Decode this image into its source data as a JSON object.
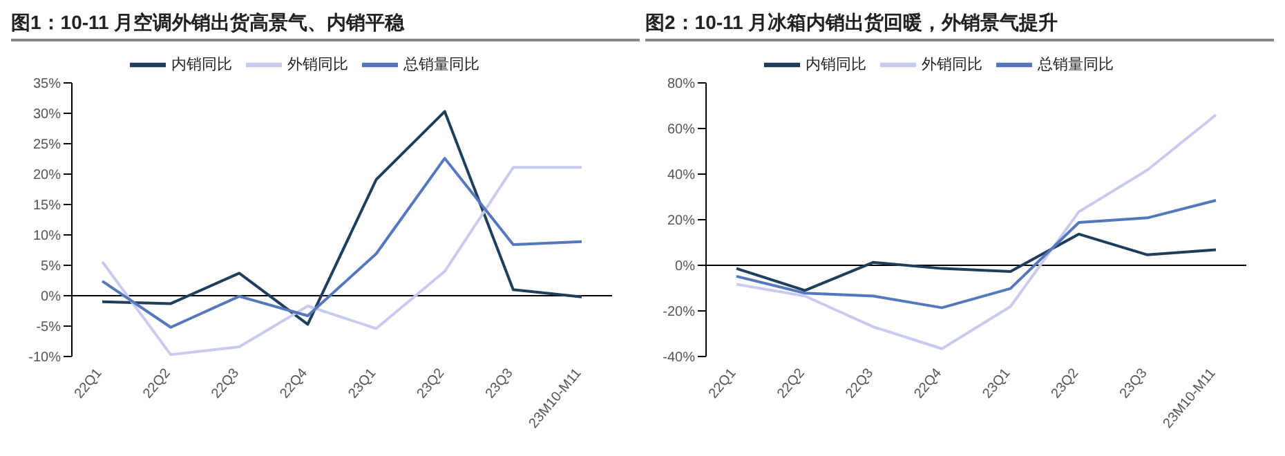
{
  "chart_data": [
    {
      "type": "line",
      "title": "图1：10-11 月空调外销出货高景气、内销平稳",
      "categories": [
        "22Q1",
        "22Q2",
        "22Q3",
        "22Q4",
        "23Q1",
        "23Q2",
        "23Q3",
        "23M10-M11"
      ],
      "series": [
        {
          "name": "内销同比",
          "color": "#1f3d5c",
          "values": [
            -1.0,
            -1.3,
            3.7,
            -4.7,
            19.1,
            30.3,
            1.0,
            -0.2
          ]
        },
        {
          "name": "外销同比",
          "color": "#c9cbee",
          "values": [
            5.6,
            -9.7,
            -8.4,
            -1.7,
            -5.4,
            4.0,
            21.1,
            21.1
          ]
        },
        {
          "name": "总销量同比",
          "color": "#5577bb",
          "values": [
            2.4,
            -5.2,
            -0.1,
            -3.3,
            6.9,
            22.6,
            8.4,
            8.9
          ]
        }
      ],
      "ylim": [
        -10,
        35
      ],
      "yticks": [
        {
          "value": -10,
          "label": "-10%"
        },
        {
          "value": -5,
          "label": "-5%"
        },
        {
          "value": 0,
          "label": "0%"
        },
        {
          "value": 5,
          "label": "5%"
        },
        {
          "value": 10,
          "label": "10%"
        },
        {
          "value": 15,
          "label": "15%"
        },
        {
          "value": 20,
          "label": "20%"
        },
        {
          "value": 25,
          "label": "25%"
        },
        {
          "value": 30,
          "label": "30%"
        },
        {
          "value": 35,
          "label": "35%"
        }
      ],
      "ref_lines": [
        {
          "axis": "y",
          "value": 0
        }
      ],
      "grid": false,
      "legend": "top",
      "marker": "none",
      "line_style": "solid"
    },
    {
      "type": "line",
      "title": "图2：10-11 月冰箱内销出货回暖，外销景气提升",
      "categories": [
        "22Q1",
        "22Q2",
        "22Q3",
        "22Q4",
        "23Q1",
        "23Q2",
        "23Q3",
        "23M10-M11"
      ],
      "series": [
        {
          "name": "内销同比",
          "color": "#1f3d5c",
          "values": [
            -1.4,
            -11,
            1.3,
            -1.4,
            -2.7,
            13.7,
            4.6,
            6.8
          ]
        },
        {
          "name": "外销同比",
          "color": "#c9cbee",
          "values": [
            -8.3,
            -13.5,
            -27,
            -36.6,
            -18.1,
            23.5,
            41.8,
            66
          ]
        },
        {
          "name": "总销量同比",
          "color": "#5577bb",
          "values": [
            -4.8,
            -12.2,
            -13.5,
            -18.6,
            -10.2,
            18.8,
            20.8,
            28.5
          ]
        }
      ],
      "ylim": [
        -40,
        80
      ],
      "yticks": [
        {
          "value": -40,
          "label": "-40%"
        },
        {
          "value": -20,
          "label": "-20%"
        },
        {
          "value": 0,
          "label": "0%"
        },
        {
          "value": 20,
          "label": "20%"
        },
        {
          "value": 40,
          "label": "40%"
        },
        {
          "value": 60,
          "label": "60%"
        },
        {
          "value": 80,
          "label": "80%"
        }
      ],
      "ref_lines": [
        {
          "axis": "y",
          "value": 0
        }
      ],
      "grid": false,
      "legend": "top",
      "marker": "none",
      "line_style": "solid"
    }
  ]
}
